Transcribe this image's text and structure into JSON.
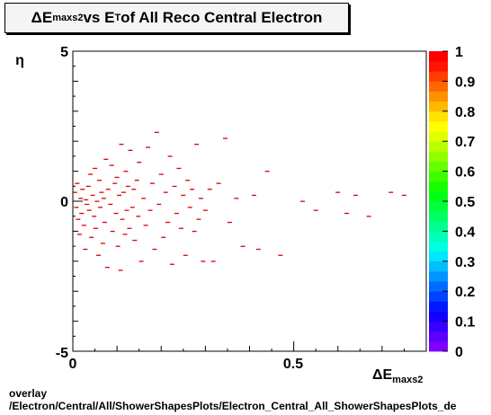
{
  "title": {
    "delta": "ΔE",
    "sub1": "maxs2",
    "mid": " vs E",
    "sub2": "T",
    "rest": " of All Reco Central Electron"
  },
  "footer": {
    "line1": "overlay",
    "line2": "/Electron/Central/All/ShowerShapesPlots/Electron_Central_All_ShowerShapesPlots_de"
  },
  "chart_data": {
    "type": "heatmap",
    "title": "ΔEmaxs2 vs ET of All Reco Central Electron",
    "xlabel": "ΔEmaxs2",
    "ylabel": "η",
    "xlim": [
      0,
      0.8
    ],
    "ylim": [
      -5,
      5
    ],
    "x_ticks": [
      "0",
      "0.5"
    ],
    "y_ticks": [
      "-5",
      "0",
      "5"
    ],
    "color_scale": {
      "min": 0,
      "max": 1,
      "ticks": [
        "0",
        "0.1",
        "0.2",
        "0.3",
        "0.4",
        "0.5",
        "0.6",
        "0.7",
        "0.8",
        "0.9",
        "1"
      ],
      "colors": [
        "#7f00ff",
        "#5b00ff",
        "#3600ff",
        "#1200ff",
        "#0019ff",
        "#0042ff",
        "#006bff",
        "#0094ff",
        "#00bdff",
        "#00e6ff",
        "#00ffe0",
        "#00ffb7",
        "#00ff8e",
        "#00ff65",
        "#00ff3c",
        "#00ff13",
        "#15ff00",
        "#3eff00",
        "#67ff00",
        "#90ff00",
        "#b9ff00",
        "#e2ff00",
        "#ffff00",
        "#ffe200",
        "#ffb900",
        "#ff9000",
        "#ff6700",
        "#ff3e00",
        "#ff1500",
        "#ff0000"
      ]
    },
    "points": [
      [
        0.005,
        0.3
      ],
      [
        0.008,
        -0.2
      ],
      [
        0.01,
        0.6
      ],
      [
        0.012,
        -0.6
      ],
      [
        0.015,
        -1.1
      ],
      [
        0.018,
        0.1
      ],
      [
        0.02,
        -0.4
      ],
      [
        0.022,
        0.4
      ],
      [
        0.025,
        -0.8
      ],
      [
        0.028,
        -1.6
      ],
      [
        0.03,
        0.05
      ],
      [
        0.032,
        -0.1
      ],
      [
        0.035,
        0.5
      ],
      [
        0.037,
        -0.3
      ],
      [
        0.04,
        0.9
      ],
      [
        0.042,
        -1.2
      ],
      [
        0.045,
        0.2
      ],
      [
        0.048,
        -0.5
      ],
      [
        0.05,
        1.1
      ],
      [
        0.052,
        -0.9
      ],
      [
        0.055,
        0.0
      ],
      [
        0.058,
        -1.8
      ],
      [
        0.06,
        0.7
      ],
      [
        0.062,
        -0.2
      ],
      [
        0.065,
        0.3
      ],
      [
        0.068,
        -1.4
      ],
      [
        0.07,
        0.1
      ],
      [
        0.072,
        -0.7
      ],
      [
        0.075,
        1.4
      ],
      [
        0.078,
        -2.2
      ],
      [
        0.08,
        0.4
      ],
      [
        0.085,
        -0.1
      ],
      [
        0.088,
        1.2
      ],
      [
        0.09,
        -1.0
      ],
      [
        0.095,
        0.6
      ],
      [
        0.098,
        -0.4
      ],
      [
        0.1,
        0.8
      ],
      [
        0.102,
        -1.5
      ],
      [
        0.105,
        0.2
      ],
      [
        0.108,
        -2.3
      ],
      [
        0.11,
        1.9
      ],
      [
        0.112,
        -0.6
      ],
      [
        0.115,
        0.3
      ],
      [
        0.118,
        -1.1
      ],
      [
        0.12,
        1.0
      ],
      [
        0.122,
        -0.3
      ],
      [
        0.125,
        0.5
      ],
      [
        0.128,
        -0.9
      ],
      [
        0.13,
        1.7
      ],
      [
        0.135,
        -0.2
      ],
      [
        0.138,
        0.4
      ],
      [
        0.14,
        -1.3
      ],
      [
        0.145,
        0.7
      ],
      [
        0.148,
        -0.5
      ],
      [
        0.15,
        1.3
      ],
      [
        0.155,
        -2.0
      ],
      [
        0.16,
        0.1
      ],
      [
        0.165,
        -0.8
      ],
      [
        0.17,
        1.8
      ],
      [
        0.175,
        -0.3
      ],
      [
        0.18,
        0.6
      ],
      [
        0.185,
        -1.6
      ],
      [
        0.19,
        2.3
      ],
      [
        0.195,
        -0.1
      ],
      [
        0.2,
        0.9
      ],
      [
        0.205,
        -1.2
      ],
      [
        0.21,
        0.3
      ],
      [
        0.215,
        -0.7
      ],
      [
        0.22,
        1.5
      ],
      [
        0.225,
        -2.1
      ],
      [
        0.23,
        0.5
      ],
      [
        0.235,
        -0.4
      ],
      [
        0.24,
        1.1
      ],
      [
        0.245,
        -0.9
      ],
      [
        0.25,
        0.2
      ],
      [
        0.255,
        -1.8
      ],
      [
        0.26,
        0.7
      ],
      [
        0.265,
        -0.2
      ],
      [
        0.27,
        0.4
      ],
      [
        0.275,
        -1.0
      ],
      [
        0.28,
        1.9
      ],
      [
        0.285,
        -0.6
      ],
      [
        0.29,
        0.1
      ],
      [
        0.295,
        -2.0
      ],
      [
        0.3,
        -0.3
      ],
      [
        0.31,
        0.4
      ],
      [
        0.318,
        -2.0
      ],
      [
        0.33,
        0.6
      ],
      [
        0.345,
        2.1
      ],
      [
        0.355,
        -0.7
      ],
      [
        0.37,
        0.1
      ],
      [
        0.385,
        -1.5
      ],
      [
        0.41,
        0.2
      ],
      [
        0.42,
        -1.6
      ],
      [
        0.44,
        1.0
      ],
      [
        0.47,
        -1.8
      ],
      [
        0.52,
        0.0
      ],
      [
        0.55,
        -0.3
      ],
      [
        0.6,
        0.3
      ],
      [
        0.62,
        -0.4
      ],
      [
        0.64,
        0.2
      ],
      [
        0.67,
        -0.5
      ],
      [
        0.72,
        0.3
      ],
      [
        0.75,
        0.2
      ]
    ]
  }
}
